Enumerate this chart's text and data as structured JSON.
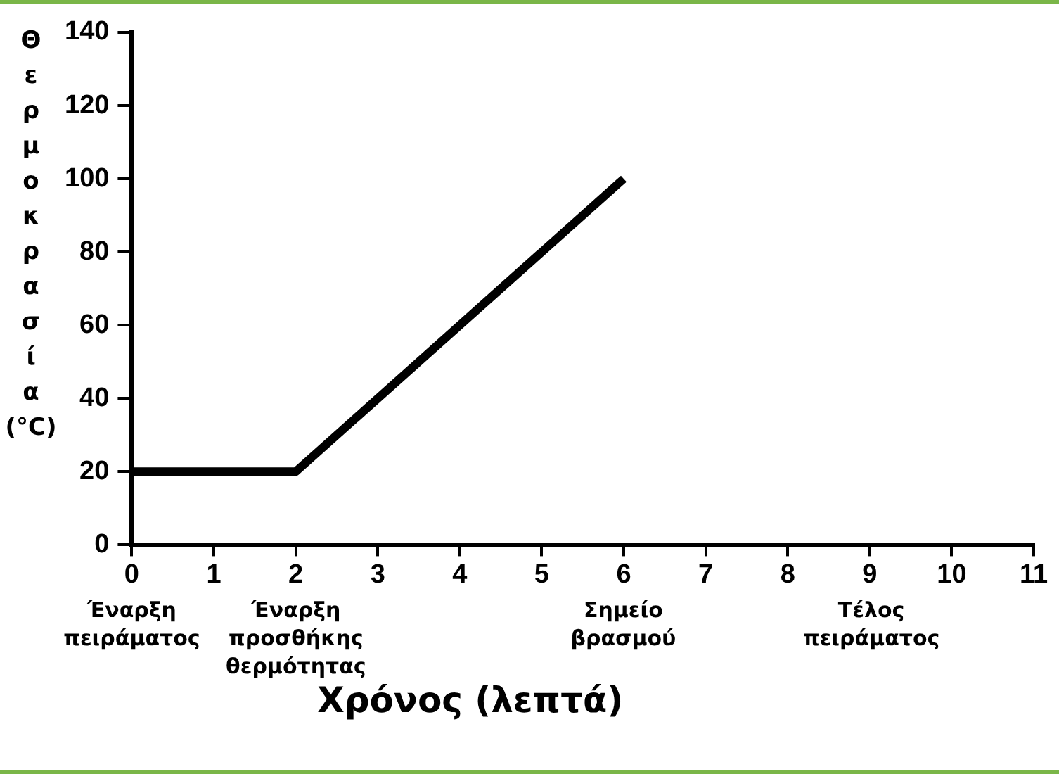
{
  "chart_data": {
    "type": "line",
    "xlabel": "Χρόνος (λεπτά)",
    "ylabel": "Θερμοκρασία (°C)",
    "x": [
      0,
      2,
      6
    ],
    "series": [
      {
        "color": "#000000",
        "values": [
          20,
          20,
          100
        ]
      }
    ],
    "xlim": [
      0,
      11
    ],
    "xticks": [
      0,
      1,
      2,
      3,
      4,
      5,
      6,
      7,
      8,
      9,
      10,
      11
    ],
    "ylim": [
      0,
      140
    ],
    "yticks": [
      0,
      20,
      40,
      60,
      80,
      100,
      120,
      140
    ],
    "grid": false,
    "legend": false,
    "marker": "none",
    "line_style": "solid",
    "annotations": [
      "Έναρξη\nπειράματος",
      "Έναρξη\nπροσθήκης\nθερμότητας",
      "Σημείο\nβρασμού",
      "Τέλος\nπειράματος"
    ]
  }
}
